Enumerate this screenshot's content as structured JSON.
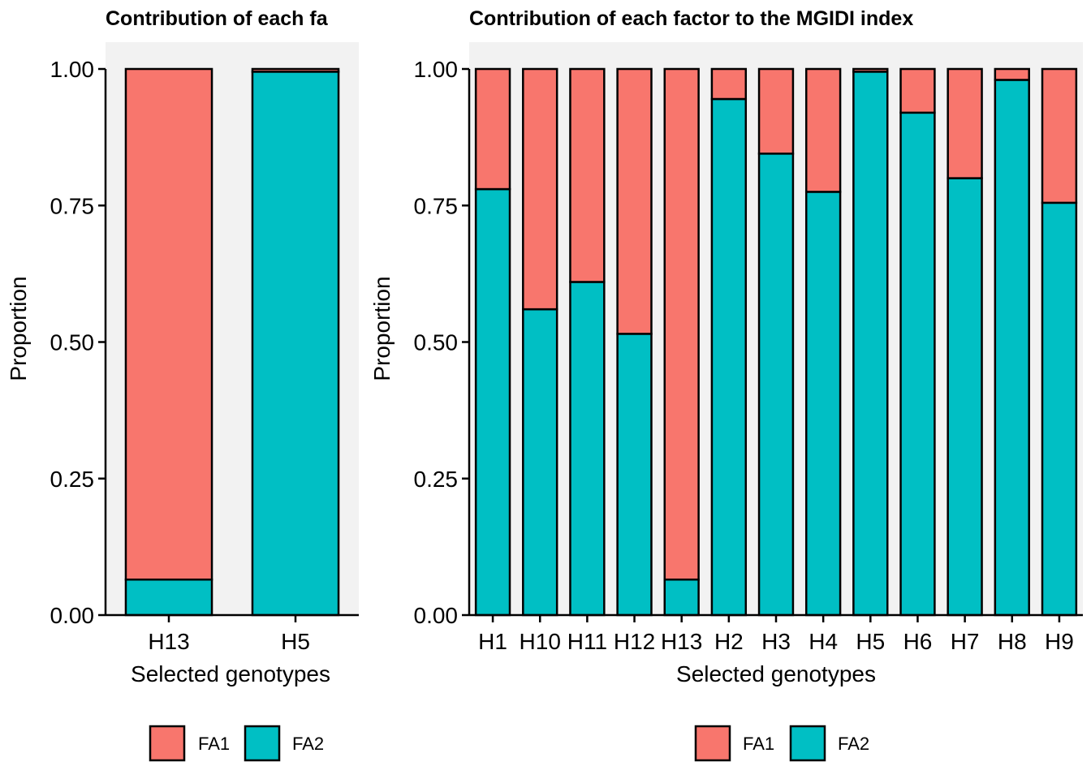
{
  "colors": {
    "FA1": "#F8766D",
    "FA2": "#00BFC4",
    "panel_bg": "#F2F2F2"
  },
  "chart_data": [
    {
      "type": "bar",
      "stacked": true,
      "title": "Contribution of each fa",
      "xlabel": "Selected genotypes",
      "ylabel": "Proportion",
      "ylim": [
        0,
        1
      ],
      "yticks": [
        "0.00",
        "0.25",
        "0.50",
        "0.75",
        "1.00"
      ],
      "categories": [
        "H13",
        "H5"
      ],
      "series": [
        {
          "name": "FA2",
          "values": [
            0.065,
            0.995
          ]
        },
        {
          "name": "FA1",
          "values": [
            0.935,
            0.005
          ]
        }
      ],
      "legend": {
        "position": "bottom",
        "entries": [
          "FA1",
          "FA2"
        ]
      }
    },
    {
      "type": "bar",
      "stacked": true,
      "title": "Contribution of each factor to the MGIDI index",
      "xlabel": "Selected genotypes",
      "ylabel": "Proportion",
      "ylim": [
        0,
        1
      ],
      "yticks": [
        "0.00",
        "0.25",
        "0.50",
        "0.75",
        "1.00"
      ],
      "categories": [
        "H1",
        "H10",
        "H11",
        "H12",
        "H13",
        "H2",
        "H3",
        "H4",
        "H5",
        "H6",
        "H7",
        "H8",
        "H9"
      ],
      "series": [
        {
          "name": "FA2",
          "values": [
            0.78,
            0.56,
            0.61,
            0.515,
            0.065,
            0.945,
            0.845,
            0.775,
            0.995,
            0.92,
            0.8,
            0.98,
            0.755
          ]
        },
        {
          "name": "FA1",
          "values": [
            0.22,
            0.44,
            0.39,
            0.485,
            0.935,
            0.055,
            0.155,
            0.225,
            0.005,
            0.08,
            0.2,
            0.02,
            0.245
          ]
        }
      ],
      "legend": {
        "position": "bottom",
        "entries": [
          "FA1",
          "FA2"
        ]
      }
    }
  ]
}
